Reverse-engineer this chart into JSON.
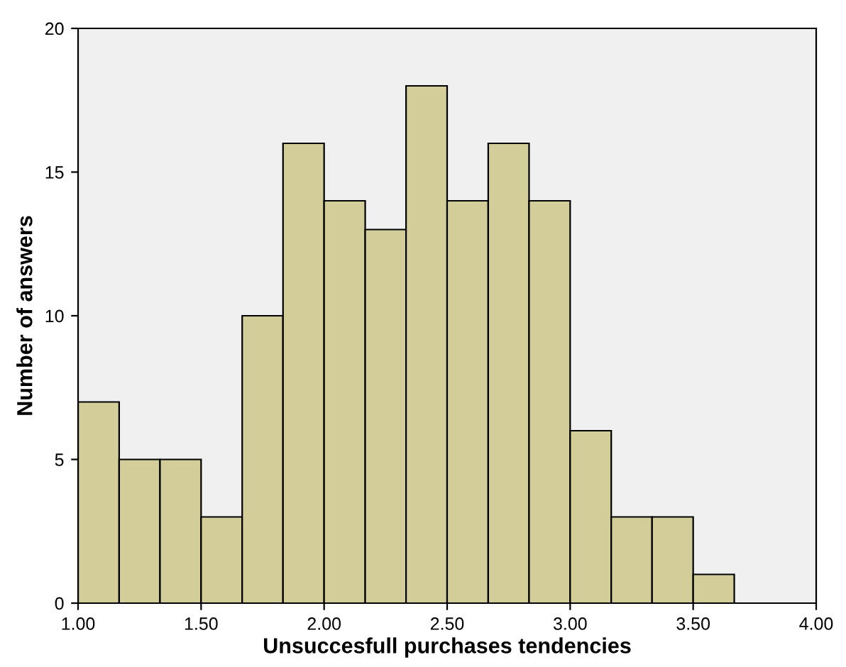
{
  "chart_data": {
    "type": "histogram",
    "xlabel": "Unsuccesfull purchases tendencies",
    "ylabel": "Number of answers",
    "bins": [
      1.0,
      1.167,
      1.333,
      1.5,
      1.667,
      1.833,
      2.0,
      2.167,
      2.333,
      2.5,
      2.667,
      2.833,
      3.0,
      3.167,
      3.333,
      3.5,
      3.667
    ],
    "values": [
      7,
      5,
      5,
      3,
      10,
      16,
      14,
      13,
      18,
      14,
      16,
      14,
      6,
      3,
      3,
      1
    ],
    "color": "#d3ce99",
    "xlim": [
      1.0,
      4.0
    ],
    "xticks": [
      {
        "value": 1.0,
        "label": "1.00"
      },
      {
        "value": 1.5,
        "label": "1.50"
      },
      {
        "value": 2.0,
        "label": "2.00"
      },
      {
        "value": 2.5,
        "label": "2.50"
      },
      {
        "value": 3.0,
        "label": "3.00"
      },
      {
        "value": 3.5,
        "label": "3.50"
      },
      {
        "value": 4.0,
        "label": "4.00"
      }
    ],
    "ylim": [
      0,
      20
    ],
    "yticks": [
      0,
      5,
      10,
      15,
      20
    ],
    "grid": false
  }
}
